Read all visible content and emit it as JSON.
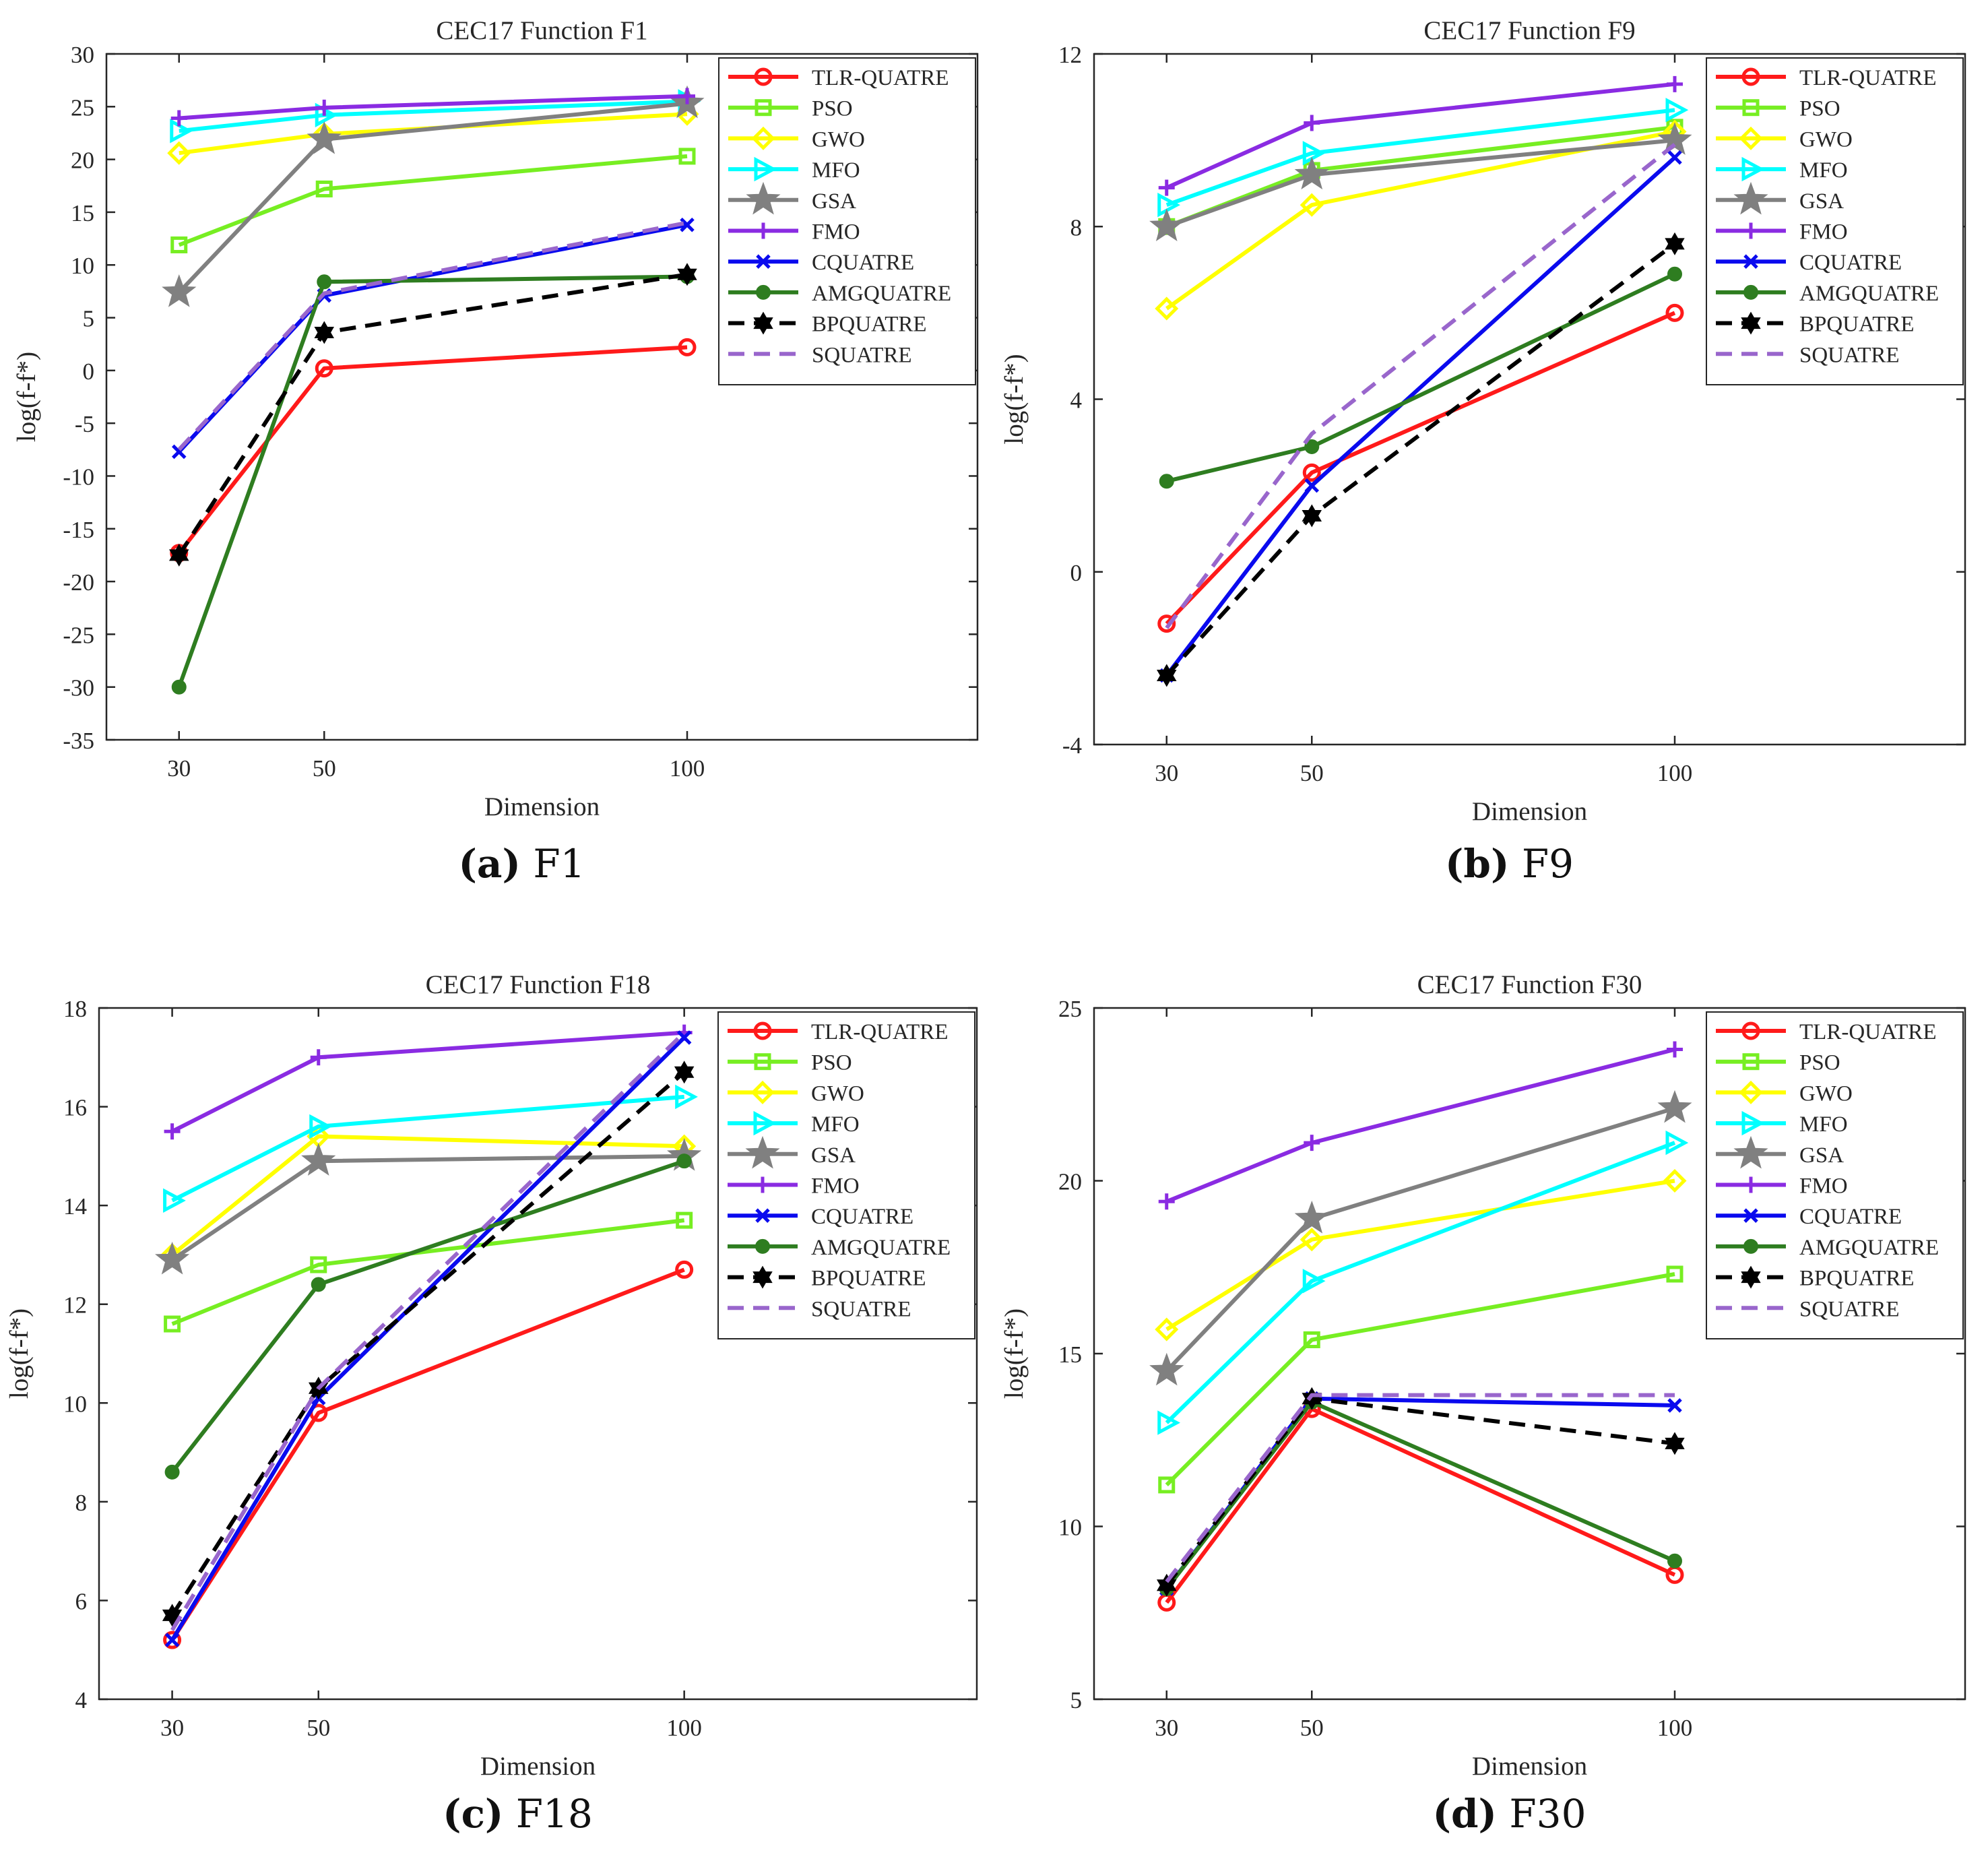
{
  "legend_entries": [
    "TLR-QUATRE",
    "PSO",
    "GWO",
    "MFO",
    "GSA",
    "FMO",
    "CQUATRE",
    "AMGQUATRE",
    "BPQUATRE",
    "SQUATRE"
  ],
  "series_styles": {
    "TLR-QUATRE": {
      "color": "#ff1a1a",
      "marker": "circle",
      "dash": false
    },
    "PSO": {
      "color": "#77ee22",
      "marker": "square",
      "dash": false
    },
    "GWO": {
      "color": "#ffff00",
      "marker": "diamond",
      "dash": false
    },
    "MFO": {
      "color": "#00ffff",
      "marker": "triangle-right",
      "dash": false
    },
    "GSA": {
      "color": "#808080",
      "marker": "star",
      "dash": false
    },
    "FMO": {
      "color": "#8a2be2",
      "marker": "plus",
      "dash": false
    },
    "CQUATRE": {
      "color": "#0a0aee",
      "marker": "x",
      "dash": false
    },
    "AMGQUATRE": {
      "color": "#2e7d20",
      "marker": "dot",
      "dash": false
    },
    "BPQUATRE": {
      "color": "#000000",
      "marker": "hexagram",
      "dash": true
    },
    "SQUATRE": {
      "color": "#9966cc",
      "marker": "none",
      "dash": true
    }
  },
  "chart_data": [
    {
      "id": "a",
      "type": "line",
      "title": "CEC17 Function F1",
      "caption_letter": "(a)",
      "caption_text": "F1",
      "xlabel": "Dimension",
      "ylabel": "log(f-f*)",
      "x": [
        30,
        50,
        100
      ],
      "xlim": [
        20,
        140
      ],
      "ylim": [
        -35,
        30
      ],
      "yticks": [
        -35,
        -30,
        -25,
        -20,
        -15,
        -10,
        -5,
        0,
        5,
        10,
        15,
        20,
        25,
        30
      ],
      "series": [
        {
          "name": "TLR-QUATRE",
          "values": [
            -17.3,
            0.2,
            2.2
          ]
        },
        {
          "name": "PSO",
          "values": [
            11.9,
            17.2,
            20.3
          ]
        },
        {
          "name": "GWO",
          "values": [
            20.6,
            22.4,
            24.3
          ]
        },
        {
          "name": "MFO",
          "values": [
            22.7,
            24.2,
            25.5
          ]
        },
        {
          "name": "GSA",
          "values": [
            7.4,
            21.9,
            25.3
          ]
        },
        {
          "name": "FMO",
          "values": [
            23.9,
            24.9,
            26.0
          ]
        },
        {
          "name": "CQUATRE",
          "values": [
            -7.7,
            7.1,
            13.8
          ]
        },
        {
          "name": "AMGQUATRE",
          "values": [
            -30.0,
            8.4,
            8.9
          ]
        },
        {
          "name": "BPQUATRE",
          "values": [
            -17.5,
            3.6,
            9.1
          ]
        },
        {
          "name": "SQUATRE",
          "values": [
            -7.5,
            7.3,
            14.0
          ]
        }
      ]
    },
    {
      "id": "b",
      "type": "line",
      "title": "CEC17 Function F9",
      "caption_letter": "(b)",
      "caption_text": "F9",
      "xlabel": "Dimension",
      "ylabel": "log(f-f*)",
      "x": [
        30,
        50,
        100
      ],
      "xlim": [
        20,
        140
      ],
      "ylim": [
        -4,
        12
      ],
      "yticks": [
        -4,
        0,
        4,
        8,
        12
      ],
      "series": [
        {
          "name": "TLR-QUATRE",
          "values": [
            -1.2,
            2.3,
            6.0
          ]
        },
        {
          "name": "PSO",
          "values": [
            8.0,
            9.3,
            10.3
          ]
        },
        {
          "name": "GWO",
          "values": [
            6.1,
            8.5,
            10.2
          ]
        },
        {
          "name": "MFO",
          "values": [
            8.5,
            9.7,
            10.7
          ]
        },
        {
          "name": "GSA",
          "values": [
            8.0,
            9.2,
            10.0
          ]
        },
        {
          "name": "FMO",
          "values": [
            8.9,
            10.4,
            11.3
          ]
        },
        {
          "name": "CQUATRE",
          "values": [
            -2.4,
            2.0,
            9.6
          ]
        },
        {
          "name": "AMGQUATRE",
          "values": [
            2.1,
            2.9,
            6.9
          ]
        },
        {
          "name": "BPQUATRE",
          "values": [
            -2.4,
            1.3,
            7.6
          ]
        },
        {
          "name": "SQUATRE",
          "values": [
            -1.3,
            3.2,
            9.9
          ]
        }
      ]
    },
    {
      "id": "c",
      "type": "line",
      "title": "CEC17 Function F18",
      "caption_letter": "(c)",
      "caption_text": "F18",
      "xlabel": "Dimension",
      "ylabel": "log(f-f*)",
      "x": [
        30,
        50,
        100
      ],
      "xlim": [
        20,
        140
      ],
      "ylim": [
        4,
        18
      ],
      "yticks": [
        4,
        6,
        8,
        10,
        12,
        14,
        16,
        18
      ],
      "series": [
        {
          "name": "TLR-QUATRE",
          "values": [
            5.2,
            9.8,
            12.7
          ]
        },
        {
          "name": "PSO",
          "values": [
            11.6,
            12.8,
            13.7
          ]
        },
        {
          "name": "GWO",
          "values": [
            13.0,
            15.4,
            15.2
          ]
        },
        {
          "name": "MFO",
          "values": [
            14.1,
            15.6,
            16.2
          ]
        },
        {
          "name": "GSA",
          "values": [
            12.9,
            14.9,
            15.0
          ]
        },
        {
          "name": "FMO",
          "values": [
            15.5,
            17.0,
            17.5
          ]
        },
        {
          "name": "CQUATRE",
          "values": [
            5.2,
            10.1,
            17.4
          ]
        },
        {
          "name": "AMGQUATRE",
          "values": [
            8.6,
            12.4,
            14.9
          ]
        },
        {
          "name": "BPQUATRE",
          "values": [
            5.7,
            10.3,
            16.7
          ]
        },
        {
          "name": "SQUATRE",
          "values": [
            5.4,
            10.3,
            17.5
          ]
        }
      ]
    },
    {
      "id": "d",
      "type": "line",
      "title": "CEC17 Function F30",
      "caption_letter": "(d)",
      "caption_text": "F30",
      "xlabel": "Dimension",
      "ylabel": "log(f-f*)",
      "x": [
        30,
        50,
        100
      ],
      "xlim": [
        20,
        140
      ],
      "ylim": [
        5,
        25
      ],
      "yticks": [
        5,
        10,
        15,
        20,
        25
      ],
      "series": [
        {
          "name": "TLR-QUATRE",
          "values": [
            7.8,
            13.4,
            8.6
          ]
        },
        {
          "name": "PSO",
          "values": [
            11.2,
            15.4,
            17.3
          ]
        },
        {
          "name": "GWO",
          "values": [
            15.7,
            18.3,
            20.0
          ]
        },
        {
          "name": "MFO",
          "values": [
            13.0,
            17.1,
            21.1
          ]
        },
        {
          "name": "GSA",
          "values": [
            14.5,
            18.9,
            22.1
          ]
        },
        {
          "name": "FMO",
          "values": [
            19.4,
            21.1,
            23.8
          ]
        },
        {
          "name": "CQUATRE",
          "values": [
            8.2,
            13.7,
            13.5
          ]
        },
        {
          "name": "AMGQUATRE",
          "values": [
            8.2,
            13.6,
            9.0
          ]
        },
        {
          "name": "BPQUATRE",
          "values": [
            8.3,
            13.7,
            12.4
          ]
        },
        {
          "name": "SQUATRE",
          "values": [
            8.4,
            13.8,
            13.8
          ]
        }
      ]
    }
  ]
}
